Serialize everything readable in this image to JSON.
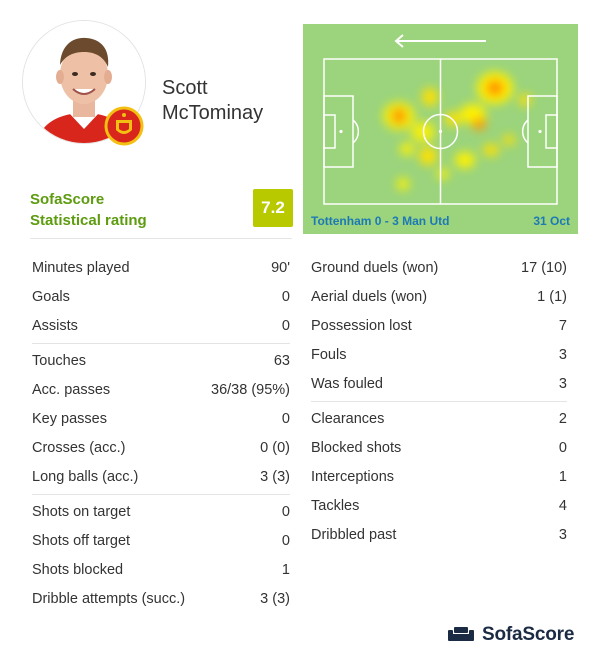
{
  "player": {
    "first_name": "Scott",
    "last_name": "McTominay",
    "avatar_icon": "player-photo",
    "club_badge_icon": "manchester-united-crest"
  },
  "rating": {
    "source_line1": "SofaScore",
    "source_line2": "Statistical rating",
    "value": "7.2",
    "color": "#b9c900"
  },
  "heatmap": {
    "match": "Tottenham 0 - 3 Man Utd",
    "date": "31 Oct",
    "direction_icon": "arrow-left-icon",
    "pitch_color": "#9bd47c"
  },
  "stats_left": [
    [
      {
        "label": "Minutes played",
        "value": "90'"
      },
      {
        "label": "Goals",
        "value": "0"
      },
      {
        "label": "Assists",
        "value": "0"
      }
    ],
    [
      {
        "label": "Touches",
        "value": "63"
      },
      {
        "label": "Acc. passes",
        "value": "36/38 (95%)"
      },
      {
        "label": "Key passes",
        "value": "0"
      },
      {
        "label": "Crosses (acc.)",
        "value": "0 (0)"
      },
      {
        "label": "Long balls (acc.)",
        "value": "3 (3)"
      }
    ],
    [
      {
        "label": "Shots on target",
        "value": "0"
      },
      {
        "label": "Shots off target",
        "value": "0"
      },
      {
        "label": "Shots blocked",
        "value": "1"
      },
      {
        "label": "Dribble attempts (succ.)",
        "value": "3 (3)"
      }
    ]
  ],
  "stats_right": [
    [
      {
        "label": "Ground duels (won)",
        "value": "17 (10)"
      },
      {
        "label": "Aerial duels (won)",
        "value": "1 (1)"
      },
      {
        "label": "Possession lost",
        "value": "7"
      },
      {
        "label": "Fouls",
        "value": "3"
      },
      {
        "label": "Was fouled",
        "value": "3"
      }
    ],
    [
      {
        "label": "Clearances",
        "value": "2"
      },
      {
        "label": "Blocked shots",
        "value": "0"
      },
      {
        "label": "Interceptions",
        "value": "1"
      },
      {
        "label": "Tackles",
        "value": "4"
      },
      {
        "label": "Dribbled past",
        "value": "3"
      }
    ]
  ],
  "brand": {
    "name": "SofaScore",
    "logo_icon": "sofa-icon"
  }
}
